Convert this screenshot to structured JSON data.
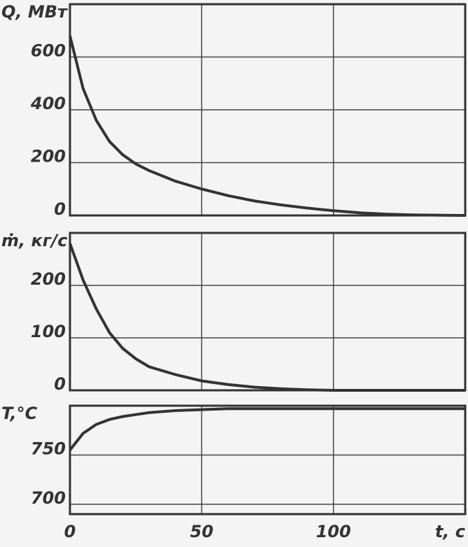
{
  "chart_data": [
    {
      "type": "line",
      "ylabel": "Q, МВт",
      "x": [
        0,
        5,
        10,
        15,
        20,
        25,
        30,
        40,
        50,
        60,
        70,
        80,
        90,
        100,
        110,
        120,
        130,
        140,
        150
      ],
      "values": [
        680,
        480,
        360,
        280,
        230,
        195,
        170,
        130,
        100,
        75,
        55,
        40,
        28,
        18,
        10,
        5,
        2,
        1,
        0
      ],
      "color": "#333333",
      "xlim": [
        0,
        150
      ],
      "xticks": [
        0,
        50,
        100
      ],
      "ylim": [
        0,
        800
      ],
      "yticks": [
        0,
        200,
        400,
        600
      ],
      "grid": true
    },
    {
      "type": "line",
      "ylabel": "ṁ, кг/с",
      "x": [
        0,
        5,
        10,
        15,
        20,
        25,
        30,
        40,
        50,
        60,
        70,
        80,
        90,
        100,
        110,
        120,
        130,
        140,
        150
      ],
      "values": [
        280,
        210,
        155,
        110,
        80,
        60,
        45,
        30,
        18,
        11,
        6,
        3,
        1,
        0,
        0,
        0,
        0,
        0,
        0
      ],
      "color": "#333333",
      "xlim": [
        0,
        150
      ],
      "xticks": [
        0,
        50,
        100
      ],
      "ylim": [
        0,
        300
      ],
      "yticks": [
        0,
        100,
        200
      ],
      "grid": true
    },
    {
      "type": "line",
      "ylabel": "T,°C",
      "xlabel": "t, c",
      "x": [
        0,
        5,
        10,
        15,
        20,
        25,
        30,
        40,
        50,
        60,
        70,
        80,
        90,
        100,
        110,
        120,
        130,
        140,
        150
      ],
      "values": [
        755,
        772,
        781,
        786,
        789,
        791,
        793,
        795,
        796,
        797,
        797,
        797,
        797,
        797,
        797,
        797,
        797,
        797,
        797
      ],
      "color": "#333333",
      "xlim": [
        0,
        150
      ],
      "xticks": [
        0,
        50,
        100
      ],
      "ylim": [
        690,
        800
      ],
      "yticks": [
        700,
        750
      ],
      "grid": true
    }
  ]
}
